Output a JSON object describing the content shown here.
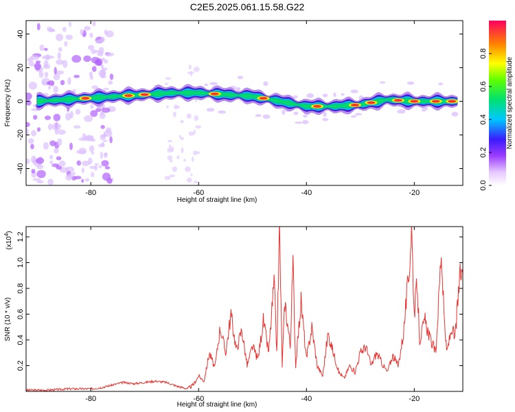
{
  "title": "C2E5.2025.061.15.58.G22",
  "chart_data": [
    {
      "type": "heatmap",
      "xlabel": "Height of straight line (km)",
      "ylabel": "Frequency (Hz)",
      "xlim": [
        -92,
        -11
      ],
      "ylim": [
        -50,
        48
      ],
      "xticks": [
        -80,
        -60,
        -40,
        -20
      ],
      "yticks": [
        40,
        20,
        0,
        -20,
        -40
      ],
      "colorbar": {
        "label": "Normalized spectral amplitude",
        "range": [
          0,
          1
        ],
        "ticks": [
          0.0,
          0.2,
          0.4,
          0.6,
          0.8
        ]
      },
      "ridge": [
        [
          -90,
          0
        ],
        [
          -85,
          1
        ],
        [
          -80,
          2
        ],
        [
          -75,
          3
        ],
        [
          -70,
          4
        ],
        [
          -65,
          5
        ],
        [
          -60,
          5
        ],
        [
          -55,
          4
        ],
        [
          -50,
          3
        ],
        [
          -45,
          0
        ],
        [
          -40,
          -3
        ],
        [
          -35,
          -3
        ],
        [
          -30,
          -2
        ],
        [
          -25,
          1
        ],
        [
          -20,
          0
        ],
        [
          -15,
          0
        ],
        [
          -12,
          0
        ]
      ]
    },
    {
      "type": "line",
      "xlabel": "Height of straight line (km)",
      "ylabel": "SNR (10 * v/v)",
      "yscale_note": "(x10",
      "yscale_exp": "4",
      "xlim": [
        -92,
        -11
      ],
      "ylim": [
        0,
        1.28
      ],
      "xticks": [
        -80,
        -60,
        -40,
        -20
      ],
      "yticks": [
        0.2,
        0.4,
        0.6,
        0.8,
        1.0,
        1.2
      ],
      "series": [
        {
          "color": "#e8312e",
          "points": [
            [
              -92,
              0.01
            ],
            [
              -88,
              0.01
            ],
            [
              -84,
              0.02
            ],
            [
              -80,
              0.02
            ],
            [
              -78,
              0.03
            ],
            [
              -76,
              0.05
            ],
            [
              -74,
              0.07
            ],
            [
              -72,
              0.06
            ],
            [
              -70,
              0.07
            ],
            [
              -68,
              0.08
            ],
            [
              -66,
              0.07
            ],
            [
              -64,
              0.04
            ],
            [
              -62,
              0.02
            ],
            [
              -61,
              0.05
            ],
            [
              -60,
              0.12
            ],
            [
              -59,
              0.08
            ],
            [
              -58,
              0.3
            ],
            [
              -57,
              0.18
            ],
            [
              -56,
              0.5
            ],
            [
              -55,
              0.3
            ],
            [
              -54,
              0.6
            ],
            [
              -53,
              0.32
            ],
            [
              -52,
              0.48
            ],
            [
              -51,
              0.2
            ],
            [
              -50,
              0.35
            ],
            [
              -49,
              0.25
            ],
            [
              -48,
              0.55
            ],
            [
              -47,
              0.3
            ],
            [
              -46,
              0.85
            ],
            [
              -45.5,
              0.3
            ],
            [
              -45,
              1.28
            ],
            [
              -44.5,
              0.2
            ],
            [
              -44,
              0.7
            ],
            [
              -43,
              0.35
            ],
            [
              -42.5,
              1.0
            ],
            [
              -42,
              0.2
            ],
            [
              -41,
              0.7
            ],
            [
              -40,
              0.25
            ],
            [
              -39,
              0.5
            ],
            [
              -38,
              0.2
            ],
            [
              -37,
              0.12
            ],
            [
              -36,
              0.45
            ],
            [
              -35,
              0.3
            ],
            [
              -34,
              0.15
            ],
            [
              -33,
              0.1
            ],
            [
              -32,
              0.2
            ],
            [
              -31,
              0.15
            ],
            [
              -30,
              0.3
            ],
            [
              -29,
              0.35
            ],
            [
              -28,
              0.2
            ],
            [
              -27,
              0.3
            ],
            [
              -26,
              0.22
            ],
            [
              -25,
              0.15
            ],
            [
              -24,
              0.28
            ],
            [
              -23,
              0.2
            ],
            [
              -22,
              0.45
            ],
            [
              -21.5,
              0.7
            ],
            [
              -21,
              0.9
            ],
            [
              -20.5,
              1.28
            ],
            [
              -20,
              0.6
            ],
            [
              -19.5,
              0.85
            ],
            [
              -19,
              0.4
            ],
            [
              -18,
              0.55
            ],
            [
              -17,
              0.4
            ],
            [
              -16,
              0.3
            ],
            [
              -15.5,
              0.7
            ],
            [
              -15,
              1.1
            ],
            [
              -14.5,
              0.6
            ],
            [
              -14,
              0.3
            ],
            [
              -13,
              0.5
            ],
            [
              -12.5,
              0.4
            ],
            [
              -12,
              0.65
            ],
            [
              -11.5,
              0.9
            ],
            [
              -11,
              0.95
            ]
          ]
        }
      ]
    }
  ]
}
